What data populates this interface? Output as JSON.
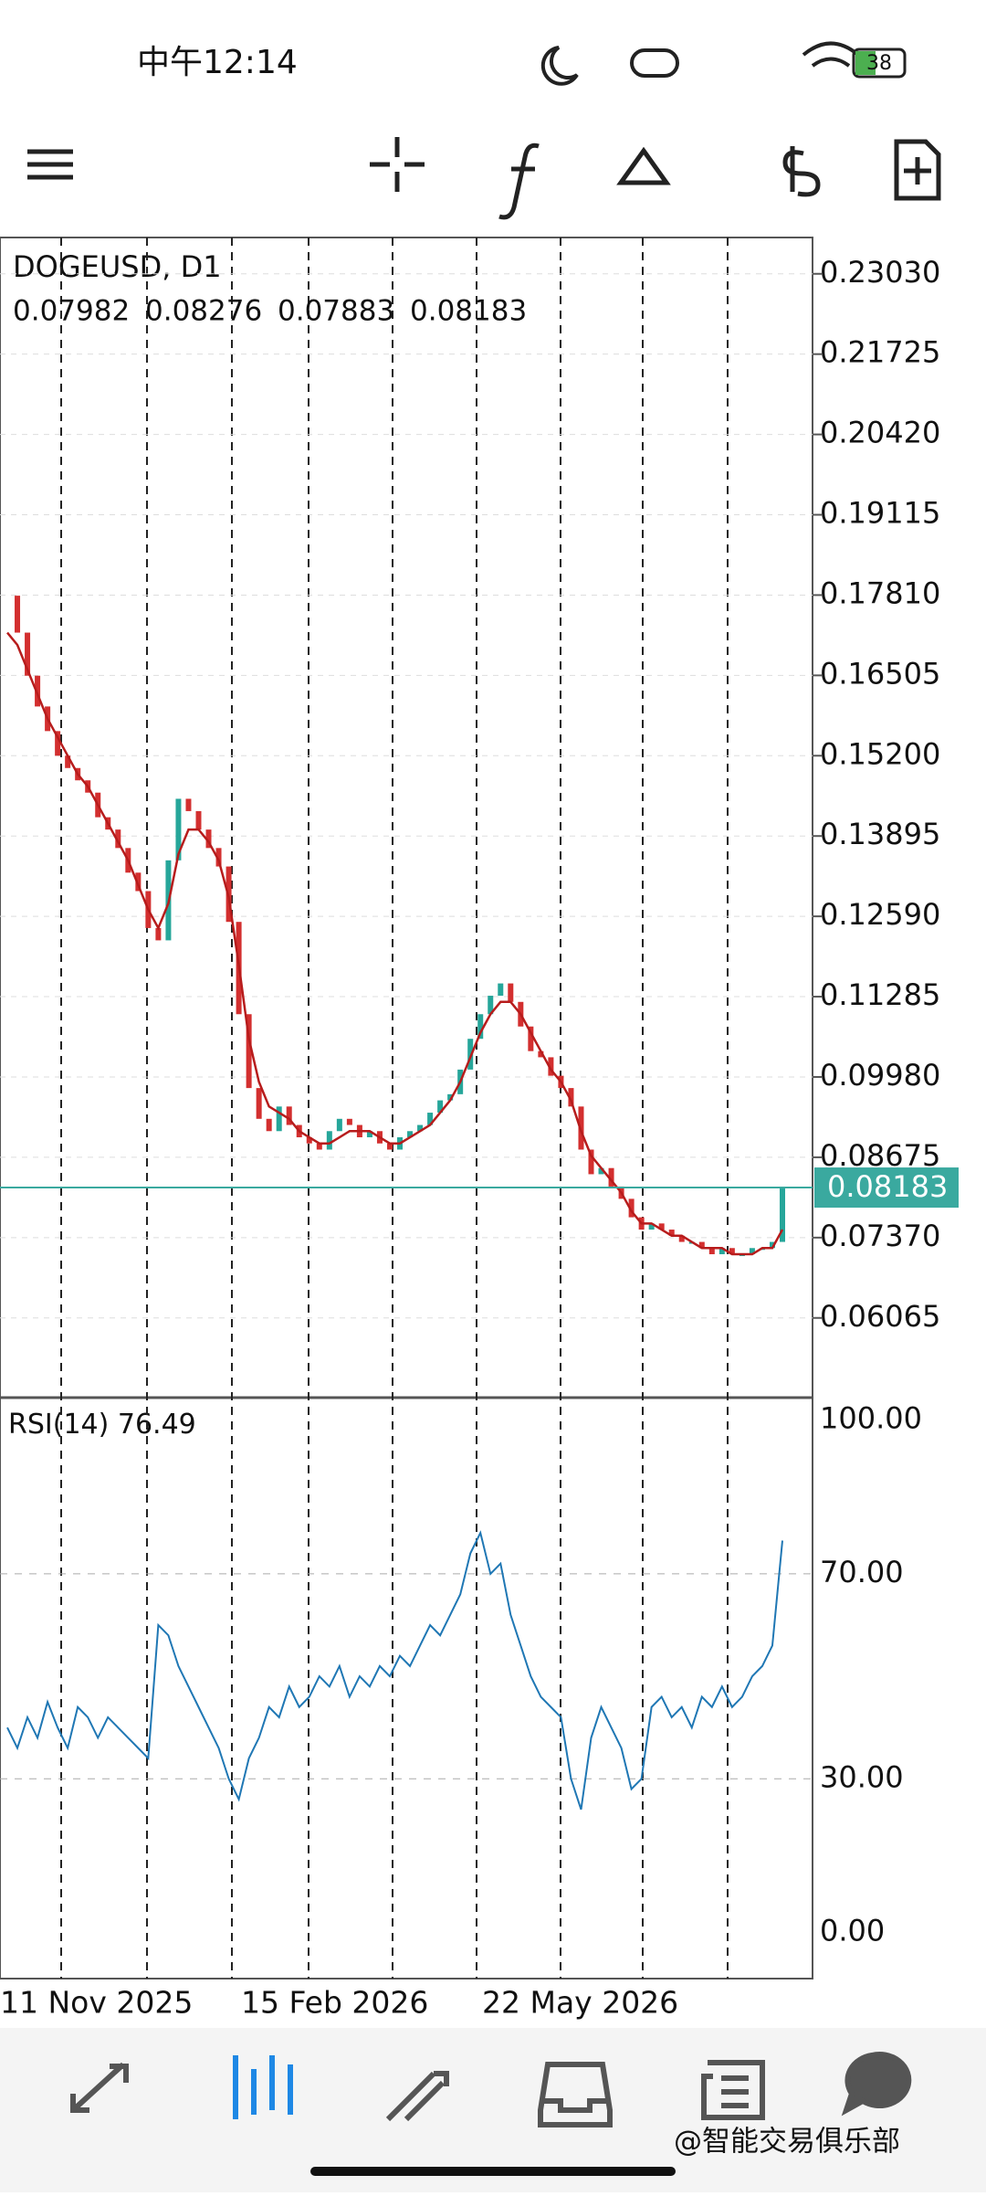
{
  "status_bar": {
    "time": "中午12:14",
    "battery": "38"
  },
  "chart_data": [
    {
      "type": "candlestick",
      "title": "DOGEUSD, D1",
      "ohlc": [
        0.07982,
        0.08276,
        0.07883,
        0.08183
      ],
      "close": [
        0.178,
        0.172,
        0.165,
        0.16,
        0.156,
        0.152,
        0.15,
        0.148,
        0.146,
        0.142,
        0.14,
        0.137,
        0.133,
        0.13,
        0.124,
        0.122,
        0.135,
        0.145,
        0.143,
        0.14,
        0.137,
        0.134,
        0.125,
        0.11,
        0.098,
        0.093,
        0.091,
        0.095,
        0.092,
        0.09,
        0.089,
        0.088,
        0.091,
        0.093,
        0.092,
        0.09,
        0.091,
        0.089,
        0.088,
        0.09,
        0.091,
        0.092,
        0.094,
        0.096,
        0.097,
        0.101,
        0.106,
        0.11,
        0.113,
        0.115,
        0.112,
        0.108,
        0.104,
        0.103,
        0.1,
        0.098,
        0.095,
        0.088,
        0.084,
        0.085,
        0.082,
        0.08,
        0.077,
        0.075,
        0.076,
        0.075,
        0.074,
        0.073,
        0.073,
        0.072,
        0.071,
        0.072,
        0.071,
        0.071,
        0.072,
        0.072,
        0.073,
        0.08183
      ],
      "ma": [
        0.172,
        0.17,
        0.166,
        0.162,
        0.158,
        0.155,
        0.152,
        0.149,
        0.147,
        0.144,
        0.141,
        0.138,
        0.135,
        0.131,
        0.127,
        0.124,
        0.128,
        0.136,
        0.14,
        0.14,
        0.138,
        0.135,
        0.129,
        0.118,
        0.106,
        0.099,
        0.095,
        0.094,
        0.093,
        0.091,
        0.09,
        0.089,
        0.089,
        0.09,
        0.091,
        0.091,
        0.091,
        0.09,
        0.089,
        0.089,
        0.09,
        0.091,
        0.092,
        0.094,
        0.096,
        0.099,
        0.103,
        0.107,
        0.11,
        0.112,
        0.112,
        0.11,
        0.107,
        0.104,
        0.101,
        0.099,
        0.096,
        0.091,
        0.087,
        0.085,
        0.083,
        0.081,
        0.078,
        0.076,
        0.076,
        0.075,
        0.074,
        0.074,
        0.073,
        0.072,
        0.072,
        0.072,
        0.071,
        0.071,
        0.071,
        0.072,
        0.072,
        0.075
      ],
      "up_color": "#26a69a",
      "down_color": "#d32f2f",
      "ma_color": "#b71c1c",
      "current_price": {
        "value": 0.08183,
        "label": "0.08183"
      },
      "ylim": [
        0.0477,
        0.2362
      ],
      "yticks": [
        {
          "value": 0.2303,
          "label": "0.23030"
        },
        {
          "value": 0.21725,
          "label": "0.21725"
        },
        {
          "value": 0.2042,
          "label": "0.20420"
        },
        {
          "value": 0.19115,
          "label": "0.19115"
        },
        {
          "value": 0.1781,
          "label": "0.17810"
        },
        {
          "value": 0.16505,
          "label": "0.16505"
        },
        {
          "value": 0.152,
          "label": "0.15200"
        },
        {
          "value": 0.13895,
          "label": "0.13895"
        },
        {
          "value": 0.1259,
          "label": "0.12590"
        },
        {
          "value": 0.11285,
          "label": "0.11285"
        },
        {
          "value": 0.0998,
          "label": "0.09980"
        },
        {
          "value": 0.08675,
          "label": "0.08675"
        },
        {
          "value": 0.0737,
          "label": "0.07370"
        },
        {
          "value": 0.06065,
          "label": "0.06065"
        }
      ]
    },
    {
      "type": "line",
      "title": "RSI(14)",
      "color": "#1f77b4",
      "values": [
        40,
        36,
        42,
        38,
        45,
        40,
        36,
        44,
        42,
        38,
        42,
        40,
        38,
        36,
        34,
        60,
        58,
        52,
        48,
        44,
        40,
        36,
        30,
        26,
        34,
        38,
        44,
        42,
        48,
        44,
        46,
        50,
        48,
        52,
        46,
        50,
        48,
        52,
        50,
        54,
        52,
        56,
        60,
        58,
        62,
        66,
        74,
        78,
        70,
        72,
        62,
        56,
        50,
        46,
        44,
        42,
        30,
        24,
        38,
        44,
        40,
        36,
        28,
        30,
        44,
        46,
        42,
        44,
        40,
        46,
        44,
        48,
        44,
        46,
        50,
        52,
        56,
        76.49
      ],
      "ylim": [
        -9,
        104.4
      ],
      "yticks": [
        {
          "value": 100,
          "label": "100.00"
        },
        {
          "value": 70,
          "label": "70.00"
        },
        {
          "value": 30,
          "label": "30.00"
        },
        {
          "value": 0,
          "label": "0.00"
        }
      ],
      "x_labels": [
        "11 Nov 2025",
        "15 Feb 2026",
        "22 May 2026"
      ]
    }
  ],
  "watermark": "@智能交易俱乐部"
}
